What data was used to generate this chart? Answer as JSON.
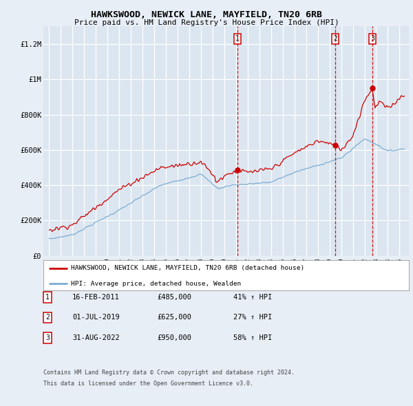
{
  "title": "HAWKSWOOD, NEWICK LANE, MAYFIELD, TN20 6RB",
  "subtitle": "Price paid vs. HM Land Registry's House Price Index (HPI)",
  "background_color": "#e8eef5",
  "plot_bg_color": "#dce6f0",
  "grid_color": "#ffffff",
  "ylim": [
    0,
    1300000
  ],
  "yticks": [
    0,
    200000,
    400000,
    600000,
    800000,
    1000000,
    1200000
  ],
  "ytick_labels": [
    "£0",
    "£200K",
    "£400K",
    "£600K",
    "£800K",
    "£1M",
    "£1.2M"
  ],
  "xlim_left": 1994.5,
  "xlim_right": 2025.8,
  "sales": [
    {
      "date_num": 2011.12,
      "price": 485000,
      "label": "1"
    },
    {
      "date_num": 2019.5,
      "price": 625000,
      "label": "2"
    },
    {
      "date_num": 2022.67,
      "price": 950000,
      "label": "3"
    }
  ],
  "legend_line1": "HAWKSWOOD, NEWICK LANE, MAYFIELD, TN20 6RB (detached house)",
  "legend_line2": "HPI: Average price, detached house, Wealden",
  "footer1": "Contains HM Land Registry data © Crown copyright and database right 2024.",
  "footer2": "This data is licensed under the Open Government Licence v3.0.",
  "sale_marker_color": "#cc0000",
  "hpi_line_color": "#7aadd4",
  "price_line_color": "#cc0000",
  "dashed_line_color": "#cc0000",
  "table_rows": [
    {
      "num": "1",
      "date": "16-FEB-2011",
      "price": "£485,000",
      "pct": "41% ↑ HPI"
    },
    {
      "num": "2",
      "date": "01-JUL-2019",
      "price": "£625,000",
      "pct": "27% ↑ HPI"
    },
    {
      "num": "3",
      "date": "31-AUG-2022",
      "price": "£950,000",
      "pct": "58% ↑ HPI"
    }
  ]
}
